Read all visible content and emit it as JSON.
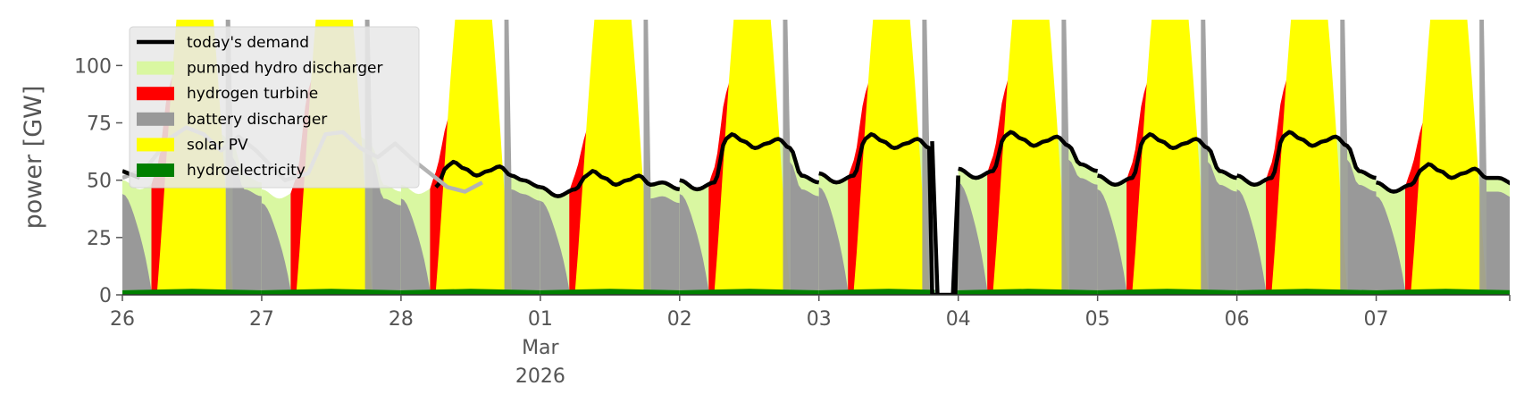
{
  "chart_data": {
    "type": "area",
    "ylabel": "power [GW]",
    "ylim": [
      0,
      120
    ],
    "yticks": [
      0,
      25,
      50,
      75,
      100
    ],
    "xlim": [
      "2026-02-26T00:00",
      "2026-03-07T23:00"
    ],
    "xticks": [
      {
        "x": "2026-02-26",
        "label": "26"
      },
      {
        "x": "2026-02-27",
        "label": "27"
      },
      {
        "x": "2026-02-28",
        "label": "28"
      },
      {
        "x": "2026-03-01",
        "label": "01"
      },
      {
        "x": "2026-03-02",
        "label": "02"
      },
      {
        "x": "2026-03-03",
        "label": "03"
      },
      {
        "x": "2026-03-04",
        "label": "04"
      },
      {
        "x": "2026-03-05",
        "label": "05"
      },
      {
        "x": "2026-03-06",
        "label": "06"
      },
      {
        "x": "2026-03-07",
        "label": "07"
      }
    ],
    "xtick_sublabel": {
      "month": "Mar",
      "year": "2026"
    },
    "grid": false,
    "legend_position": "upper-left",
    "hydro_level": 2,
    "series": [
      {
        "name": "today's demand",
        "kind": "line",
        "color": "#000000"
      },
      {
        "name": "pumped hydro discharger",
        "kind": "area",
        "color": "#d9f7a1"
      },
      {
        "name": "hydrogen turbine",
        "kind": "area",
        "color": "#ff0000"
      },
      {
        "name": "battery discharger",
        "kind": "area",
        "color": "#999999"
      },
      {
        "name": "solar PV",
        "kind": "area",
        "color": "#ffff00"
      },
      {
        "name": "hydroelectricity",
        "kind": "area",
        "color": "#008000"
      }
    ],
    "future_demand": {
      "color": "#b3b3b3",
      "x": [
        "2026-02-26T00:00",
        "2026-02-26T04:00",
        "2026-02-26T08:00",
        "2026-02-26T11:00",
        "2026-02-26T14:00",
        "2026-02-26T17:00",
        "2026-02-26T20:00",
        "2026-02-26T23:00",
        "2026-02-27T04:00",
        "2026-02-27T08:00",
        "2026-02-27T11:00",
        "2026-02-27T14:00",
        "2026-02-27T17:00",
        "2026-02-27T20:00",
        "2026-02-27T23:00",
        "2026-02-28T02:00",
        "2026-02-28T05:00",
        "2026-02-28T08:00",
        "2026-02-28T11:00",
        "2026-02-28T14:00"
      ],
      "y": [
        51,
        55,
        68,
        73,
        70,
        63,
        69,
        63,
        50,
        53,
        70,
        71,
        64,
        60,
        66,
        59,
        53,
        47,
        45,
        49
      ]
    },
    "days": [
      {
        "date": "2026-02-26",
        "demand_night": 47,
        "demand_peak": 72,
        "h2_start": 5,
        "h2_peak": 9,
        "solar_start": 6,
        "solar_peak": 12,
        "solar_end": 19,
        "bat_end": 22
      },
      {
        "date": "2026-02-27",
        "demand_night": 43,
        "demand_peak": 71,
        "h2_start": 5,
        "h2_peak": 9,
        "solar_start": 6,
        "solar_peak": 12,
        "solar_end": 19,
        "bat_end": 22
      },
      {
        "date": "2026-02-28",
        "demand_night": 45,
        "demand_peak": 58,
        "h2_start": 5,
        "h2_peak": 9,
        "solar_start": 6,
        "solar_peak": 12,
        "solar_end": 19,
        "bat_end": 22
      },
      {
        "date": "2026-03-01",
        "demand_night": 44,
        "demand_peak": 54,
        "h2_start": 5,
        "h2_peak": 9,
        "solar_start": 6,
        "solar_peak": 12,
        "solar_end": 19,
        "bat_end": 22
      },
      {
        "date": "2026-03-02",
        "demand_night": 47,
        "demand_peak": 70,
        "h2_start": 5,
        "h2_peak": 9,
        "solar_start": 6,
        "solar_peak": 12,
        "solar_end": 19,
        "bat_end": 22
      },
      {
        "date": "2026-03-03",
        "demand_night": 50,
        "demand_peak": 70,
        "h2_start": 5,
        "h2_peak": 9,
        "solar_start": 6,
        "solar_peak": 12,
        "solar_end": 19,
        "bat_end": 22
      },
      {
        "date": "2026-03-04",
        "demand_night": 52,
        "demand_peak": 71,
        "h2_start": 5,
        "h2_peak": 9,
        "solar_start": 6,
        "solar_peak": 12,
        "solar_end": 19,
        "bat_end": 22
      },
      {
        "date": "2026-03-05",
        "demand_night": 49,
        "demand_peak": 70,
        "h2_start": 5,
        "h2_peak": 9,
        "solar_start": 6,
        "solar_peak": 12,
        "solar_end": 19,
        "bat_end": 22
      },
      {
        "date": "2026-03-06",
        "demand_night": 49,
        "demand_peak": 71,
        "h2_start": 5,
        "h2_peak": 9,
        "solar_start": 6,
        "solar_peak": 12,
        "solar_end": 19,
        "bat_end": 22
      },
      {
        "date": "2026-03-07",
        "demand_night": 46,
        "demand_peak": 57,
        "h2_start": 5,
        "h2_peak": 9,
        "solar_start": 6,
        "solar_peak": 12,
        "solar_end": 19,
        "bat_end": 22
      }
    ],
    "outage": {
      "start": "2026-03-03T19:30",
      "end": "2026-03-04T00:00",
      "demand": 0
    }
  }
}
